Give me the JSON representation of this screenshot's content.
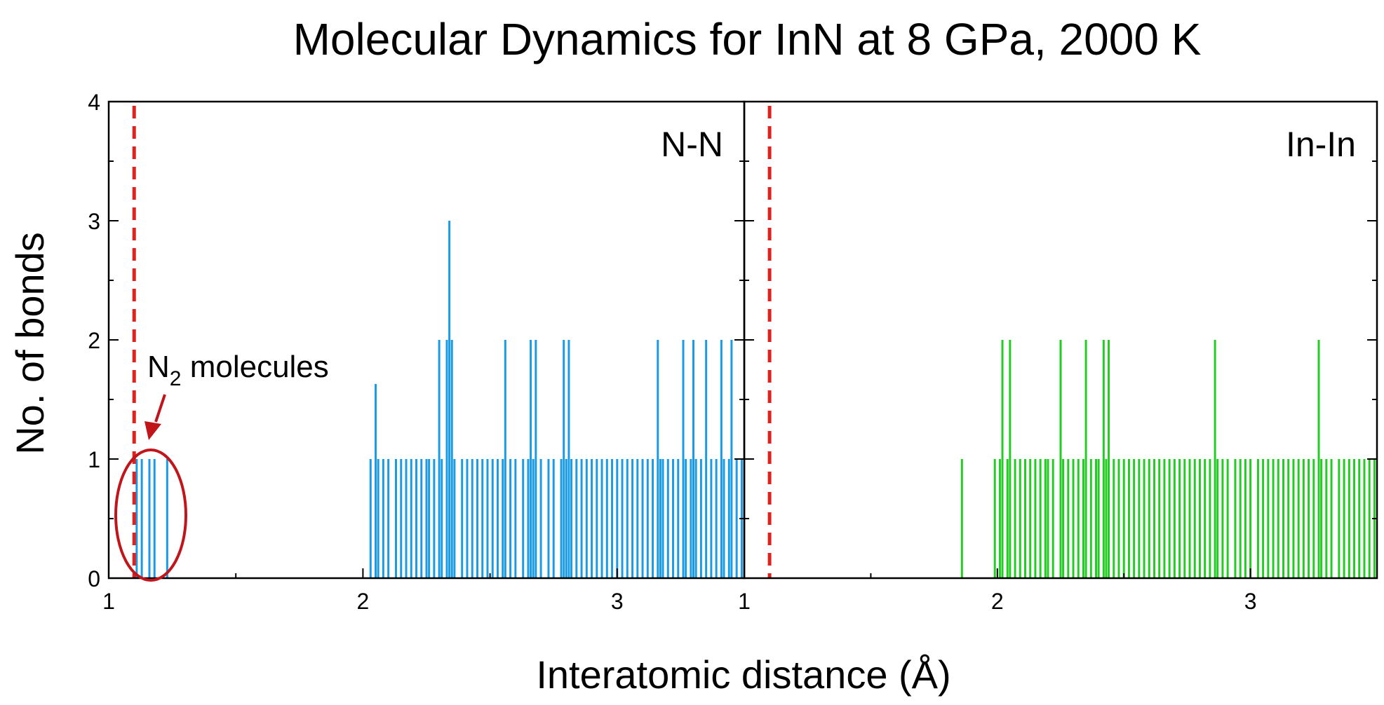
{
  "chart_data": {
    "type": "bar",
    "title": "Molecular Dynamics for InN at 8 GPa, 2000 K",
    "xlabel": "Interatomic distance (Å)",
    "ylabel": "No. of bonds",
    "ylim": [
      0,
      4
    ],
    "yticks": [
      "0",
      "1",
      "2",
      "3",
      "4"
    ],
    "grid": false,
    "panels": [
      {
        "label": "N-N",
        "xlim": [
          1.0,
          3.5
        ],
        "xticks": [
          "1",
          "2",
          "3"
        ],
        "color": "#1a9be6",
        "reference_line_x": 1.1,
        "reference_line_color": "#e0221e",
        "annotation": {
          "base": "N",
          "sub": "2",
          "rest": " molecules",
          "color": "#c0151a"
        },
        "bars": [
          {
            "x": 1.11,
            "y": 1
          },
          {
            "x": 1.13,
            "y": 1
          },
          {
            "x": 1.16,
            "y": 1
          },
          {
            "x": 1.18,
            "y": 1
          },
          {
            "x": 1.23,
            "y": 1
          },
          {
            "x": 2.03,
            "y": 1
          },
          {
            "x": 2.05,
            "y": 1.63
          },
          {
            "x": 2.06,
            "y": 1
          },
          {
            "x": 2.08,
            "y": 1
          },
          {
            "x": 2.1,
            "y": 1
          },
          {
            "x": 2.13,
            "y": 1
          },
          {
            "x": 2.15,
            "y": 1
          },
          {
            "x": 2.17,
            "y": 1
          },
          {
            "x": 2.19,
            "y": 1
          },
          {
            "x": 2.21,
            "y": 1
          },
          {
            "x": 2.23,
            "y": 1
          },
          {
            "x": 2.25,
            "y": 1
          },
          {
            "x": 2.26,
            "y": 1
          },
          {
            "x": 2.28,
            "y": 1
          },
          {
            "x": 2.3,
            "y": 2
          },
          {
            "x": 2.31,
            "y": 1
          },
          {
            "x": 2.33,
            "y": 2
          },
          {
            "x": 2.34,
            "y": 3
          },
          {
            "x": 2.35,
            "y": 2
          },
          {
            "x": 2.36,
            "y": 1
          },
          {
            "x": 2.39,
            "y": 1
          },
          {
            "x": 2.41,
            "y": 1
          },
          {
            "x": 2.43,
            "y": 1
          },
          {
            "x": 2.45,
            "y": 1
          },
          {
            "x": 2.47,
            "y": 1
          },
          {
            "x": 2.49,
            "y": 1
          },
          {
            "x": 2.51,
            "y": 1
          },
          {
            "x": 2.53,
            "y": 1
          },
          {
            "x": 2.55,
            "y": 1
          },
          {
            "x": 2.56,
            "y": 2
          },
          {
            "x": 2.58,
            "y": 1
          },
          {
            "x": 2.6,
            "y": 1
          },
          {
            "x": 2.63,
            "y": 1
          },
          {
            "x": 2.65,
            "y": 1
          },
          {
            "x": 2.66,
            "y": 2
          },
          {
            "x": 2.67,
            "y": 1
          },
          {
            "x": 2.68,
            "y": 2
          },
          {
            "x": 2.7,
            "y": 1
          },
          {
            "x": 2.73,
            "y": 1
          },
          {
            "x": 2.75,
            "y": 1
          },
          {
            "x": 2.78,
            "y": 1
          },
          {
            "x": 2.79,
            "y": 2
          },
          {
            "x": 2.8,
            "y": 1
          },
          {
            "x": 2.81,
            "y": 2
          },
          {
            "x": 2.82,
            "y": 1
          },
          {
            "x": 2.84,
            "y": 1
          },
          {
            "x": 2.86,
            "y": 1
          },
          {
            "x": 2.88,
            "y": 1
          },
          {
            "x": 2.9,
            "y": 1
          },
          {
            "x": 2.92,
            "y": 1
          },
          {
            "x": 2.94,
            "y": 1
          },
          {
            "x": 2.96,
            "y": 1
          },
          {
            "x": 2.98,
            "y": 1
          },
          {
            "x": 3.0,
            "y": 1
          },
          {
            "x": 3.02,
            "y": 1
          },
          {
            "x": 3.04,
            "y": 1
          },
          {
            "x": 3.06,
            "y": 1
          },
          {
            "x": 3.08,
            "y": 1
          },
          {
            "x": 3.1,
            "y": 1
          },
          {
            "x": 3.12,
            "y": 1
          },
          {
            "x": 3.14,
            "y": 1
          },
          {
            "x": 3.16,
            "y": 2
          },
          {
            "x": 3.17,
            "y": 1
          },
          {
            "x": 3.18,
            "y": 1
          },
          {
            "x": 3.2,
            "y": 1
          },
          {
            "x": 3.22,
            "y": 1
          },
          {
            "x": 3.24,
            "y": 1
          },
          {
            "x": 3.26,
            "y": 2
          },
          {
            "x": 3.27,
            "y": 1
          },
          {
            "x": 3.29,
            "y": 1
          },
          {
            "x": 3.3,
            "y": 2
          },
          {
            "x": 3.31,
            "y": 1
          },
          {
            "x": 3.33,
            "y": 1
          },
          {
            "x": 3.35,
            "y": 2
          },
          {
            "x": 3.37,
            "y": 1
          },
          {
            "x": 3.39,
            "y": 1
          },
          {
            "x": 3.41,
            "y": 2
          },
          {
            "x": 3.42,
            "y": 1
          },
          {
            "x": 3.44,
            "y": 1
          },
          {
            "x": 3.45,
            "y": 2
          },
          {
            "x": 3.47,
            "y": 1
          },
          {
            "x": 3.49,
            "y": 1
          }
        ]
      },
      {
        "label": "In-In",
        "xlim": [
          1.0,
          3.5
        ],
        "xticks": [
          "1",
          "2",
          "3"
        ],
        "color": "#22cc22",
        "reference_line_x": 1.1,
        "reference_line_color": "#e0221e",
        "bars": [
          {
            "x": 1.86,
            "y": 1
          },
          {
            "x": 1.99,
            "y": 1
          },
          {
            "x": 2.01,
            "y": 1
          },
          {
            "x": 2.02,
            "y": 2
          },
          {
            "x": 2.04,
            "y": 1
          },
          {
            "x": 2.05,
            "y": 2
          },
          {
            "x": 2.07,
            "y": 1
          },
          {
            "x": 2.09,
            "y": 1
          },
          {
            "x": 2.11,
            "y": 1
          },
          {
            "x": 2.13,
            "y": 1
          },
          {
            "x": 2.15,
            "y": 1
          },
          {
            "x": 2.17,
            "y": 1
          },
          {
            "x": 2.19,
            "y": 1
          },
          {
            "x": 2.2,
            "y": 1
          },
          {
            "x": 2.22,
            "y": 1
          },
          {
            "x": 2.25,
            "y": 2
          },
          {
            "x": 2.26,
            "y": 1
          },
          {
            "x": 2.28,
            "y": 1
          },
          {
            "x": 2.3,
            "y": 1
          },
          {
            "x": 2.32,
            "y": 1
          },
          {
            "x": 2.34,
            "y": 1
          },
          {
            "x": 2.35,
            "y": 2
          },
          {
            "x": 2.37,
            "y": 1
          },
          {
            "x": 2.39,
            "y": 1
          },
          {
            "x": 2.4,
            "y": 1
          },
          {
            "x": 2.42,
            "y": 2
          },
          {
            "x": 2.43,
            "y": 1
          },
          {
            "x": 2.44,
            "y": 2
          },
          {
            "x": 2.46,
            "y": 1
          },
          {
            "x": 2.48,
            "y": 1
          },
          {
            "x": 2.5,
            "y": 1
          },
          {
            "x": 2.52,
            "y": 1
          },
          {
            "x": 2.54,
            "y": 1
          },
          {
            "x": 2.56,
            "y": 1
          },
          {
            "x": 2.58,
            "y": 1
          },
          {
            "x": 2.6,
            "y": 1
          },
          {
            "x": 2.62,
            "y": 1
          },
          {
            "x": 2.64,
            "y": 1
          },
          {
            "x": 2.66,
            "y": 1
          },
          {
            "x": 2.68,
            "y": 1
          },
          {
            "x": 2.7,
            "y": 1
          },
          {
            "x": 2.72,
            "y": 1
          },
          {
            "x": 2.74,
            "y": 1
          },
          {
            "x": 2.76,
            "y": 1
          },
          {
            "x": 2.78,
            "y": 1
          },
          {
            "x": 2.8,
            "y": 1
          },
          {
            "x": 2.82,
            "y": 1
          },
          {
            "x": 2.84,
            "y": 1
          },
          {
            "x": 2.86,
            "y": 2
          },
          {
            "x": 2.87,
            "y": 1
          },
          {
            "x": 2.89,
            "y": 1
          },
          {
            "x": 2.91,
            "y": 1
          },
          {
            "x": 2.94,
            "y": 1
          },
          {
            "x": 2.96,
            "y": 1
          },
          {
            "x": 2.98,
            "y": 1
          },
          {
            "x": 3.0,
            "y": 1
          },
          {
            "x": 3.03,
            "y": 1
          },
          {
            "x": 3.05,
            "y": 1
          },
          {
            "x": 3.07,
            "y": 1
          },
          {
            "x": 3.09,
            "y": 1
          },
          {
            "x": 3.11,
            "y": 1
          },
          {
            "x": 3.13,
            "y": 1
          },
          {
            "x": 3.15,
            "y": 1
          },
          {
            "x": 3.17,
            "y": 1
          },
          {
            "x": 3.19,
            "y": 1
          },
          {
            "x": 3.21,
            "y": 1
          },
          {
            "x": 3.23,
            "y": 1
          },
          {
            "x": 3.25,
            "y": 1
          },
          {
            "x": 3.27,
            "y": 2
          },
          {
            "x": 3.28,
            "y": 1
          },
          {
            "x": 3.3,
            "y": 1
          },
          {
            "x": 3.32,
            "y": 1
          },
          {
            "x": 3.35,
            "y": 1
          },
          {
            "x": 3.37,
            "y": 1
          },
          {
            "x": 3.39,
            "y": 1
          },
          {
            "x": 3.41,
            "y": 1
          },
          {
            "x": 3.43,
            "y": 1
          },
          {
            "x": 3.45,
            "y": 1
          },
          {
            "x": 3.47,
            "y": 1
          },
          {
            "x": 3.49,
            "y": 1
          }
        ]
      }
    ]
  }
}
